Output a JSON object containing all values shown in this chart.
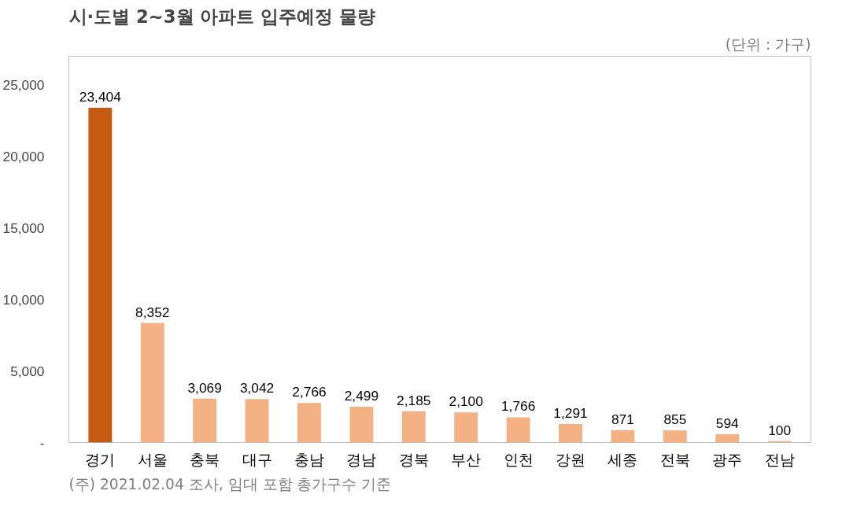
{
  "chart_data": {
    "type": "bar",
    "title": "시·도별 2~3월 아파트 입주예정 물량",
    "subtitle": "(단위 : 가구)",
    "categories": [
      "경기",
      "서울",
      "충북",
      "대구",
      "충남",
      "경남",
      "경북",
      "부산",
      "인천",
      "강원",
      "세종",
      "전북",
      "광주",
      "전남"
    ],
    "values": [
      23404,
      8352,
      3069,
      3042,
      2766,
      2499,
      2185,
      2100,
      1766,
      1291,
      871,
      855,
      594,
      100
    ],
    "colors": [
      "#c55a11",
      "#f4b183",
      "#f4b183",
      "#f4b183",
      "#f4b183",
      "#f4b183",
      "#f4b183",
      "#f4b183",
      "#f4b183",
      "#f4b183",
      "#f4b183",
      "#f4b183",
      "#f4b183",
      "#f4b183"
    ],
    "ylim": [
      0,
      27000
    ],
    "yticks": [
      {
        "value": 0,
        "label": "-"
      },
      {
        "value": 5000,
        "label": "5,000"
      },
      {
        "value": 10000,
        "label": "10,000"
      },
      {
        "value": 15000,
        "label": "15,000"
      },
      {
        "value": 20000,
        "label": "20,000"
      },
      {
        "value": 25000,
        "label": "25,000"
      }
    ],
    "value_labels": [
      "23,404",
      "8,352",
      "3,069",
      "3,042",
      "2,766",
      "2,499",
      "2,185",
      "2,100",
      "1,766",
      "1,291",
      "871",
      "855",
      "594",
      "100"
    ],
    "annotations": [
      "(주) 2021.02.04 조사, 임대 포함 총가구수 기준"
    ]
  }
}
